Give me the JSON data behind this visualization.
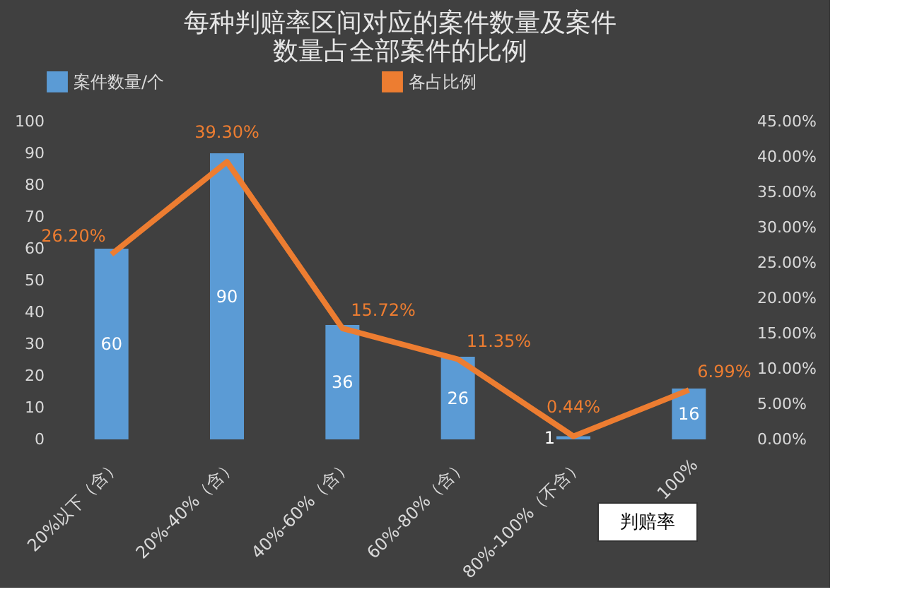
{
  "chart_data": {
    "type": "bar",
    "title": "每种判赔率区间对应的案件数量及案件数量占全部案件的比例",
    "xlabel": "判赔率",
    "categories": [
      "20%以下（含）",
      "20%-40%（含）",
      "40%-60%（含）",
      "60%-80%（含）",
      "80%-100%（不含）",
      "100%"
    ],
    "series": [
      {
        "name": "案件数量/个",
        "color": "#5b9bd5",
        "values": [
          60,
          90,
          36,
          26,
          1,
          16
        ],
        "value_labels": [
          "60",
          "90",
          "36",
          "26",
          "1",
          "16"
        ]
      },
      {
        "name": "各占比例",
        "type": "line",
        "axis": "y2",
        "color": "#ed7d31",
        "values": [
          26.2,
          39.3,
          15.72,
          11.35,
          0.44,
          6.99
        ],
        "value_labels": [
          "26.20%",
          "39.30%",
          "15.72%",
          "11.35%",
          "0.44%",
          "6.99%"
        ]
      }
    ],
    "ylim": [
      0,
      100
    ],
    "yticks": [
      0,
      10,
      20,
      30,
      40,
      50,
      60,
      70,
      80,
      90,
      100
    ],
    "y2lim": [
      0,
      45
    ],
    "y2ticks": [
      {
        "value": 0,
        "label": "0.00%"
      },
      {
        "value": 5,
        "label": "5.00%"
      },
      {
        "value": 10,
        "label": "10.00%"
      },
      {
        "value": 15,
        "label": "15.00%"
      },
      {
        "value": 20,
        "label": "20.00%"
      },
      {
        "value": 25,
        "label": "25.00%"
      },
      {
        "value": 30,
        "label": "30.00%"
      },
      {
        "value": 35,
        "label": "35.00%"
      },
      {
        "value": 40,
        "label": "40.00%"
      },
      {
        "value": 45,
        "label": "45.00%"
      }
    ],
    "legend": "top",
    "grid": false,
    "marker": "none",
    "line_style": "solid"
  }
}
